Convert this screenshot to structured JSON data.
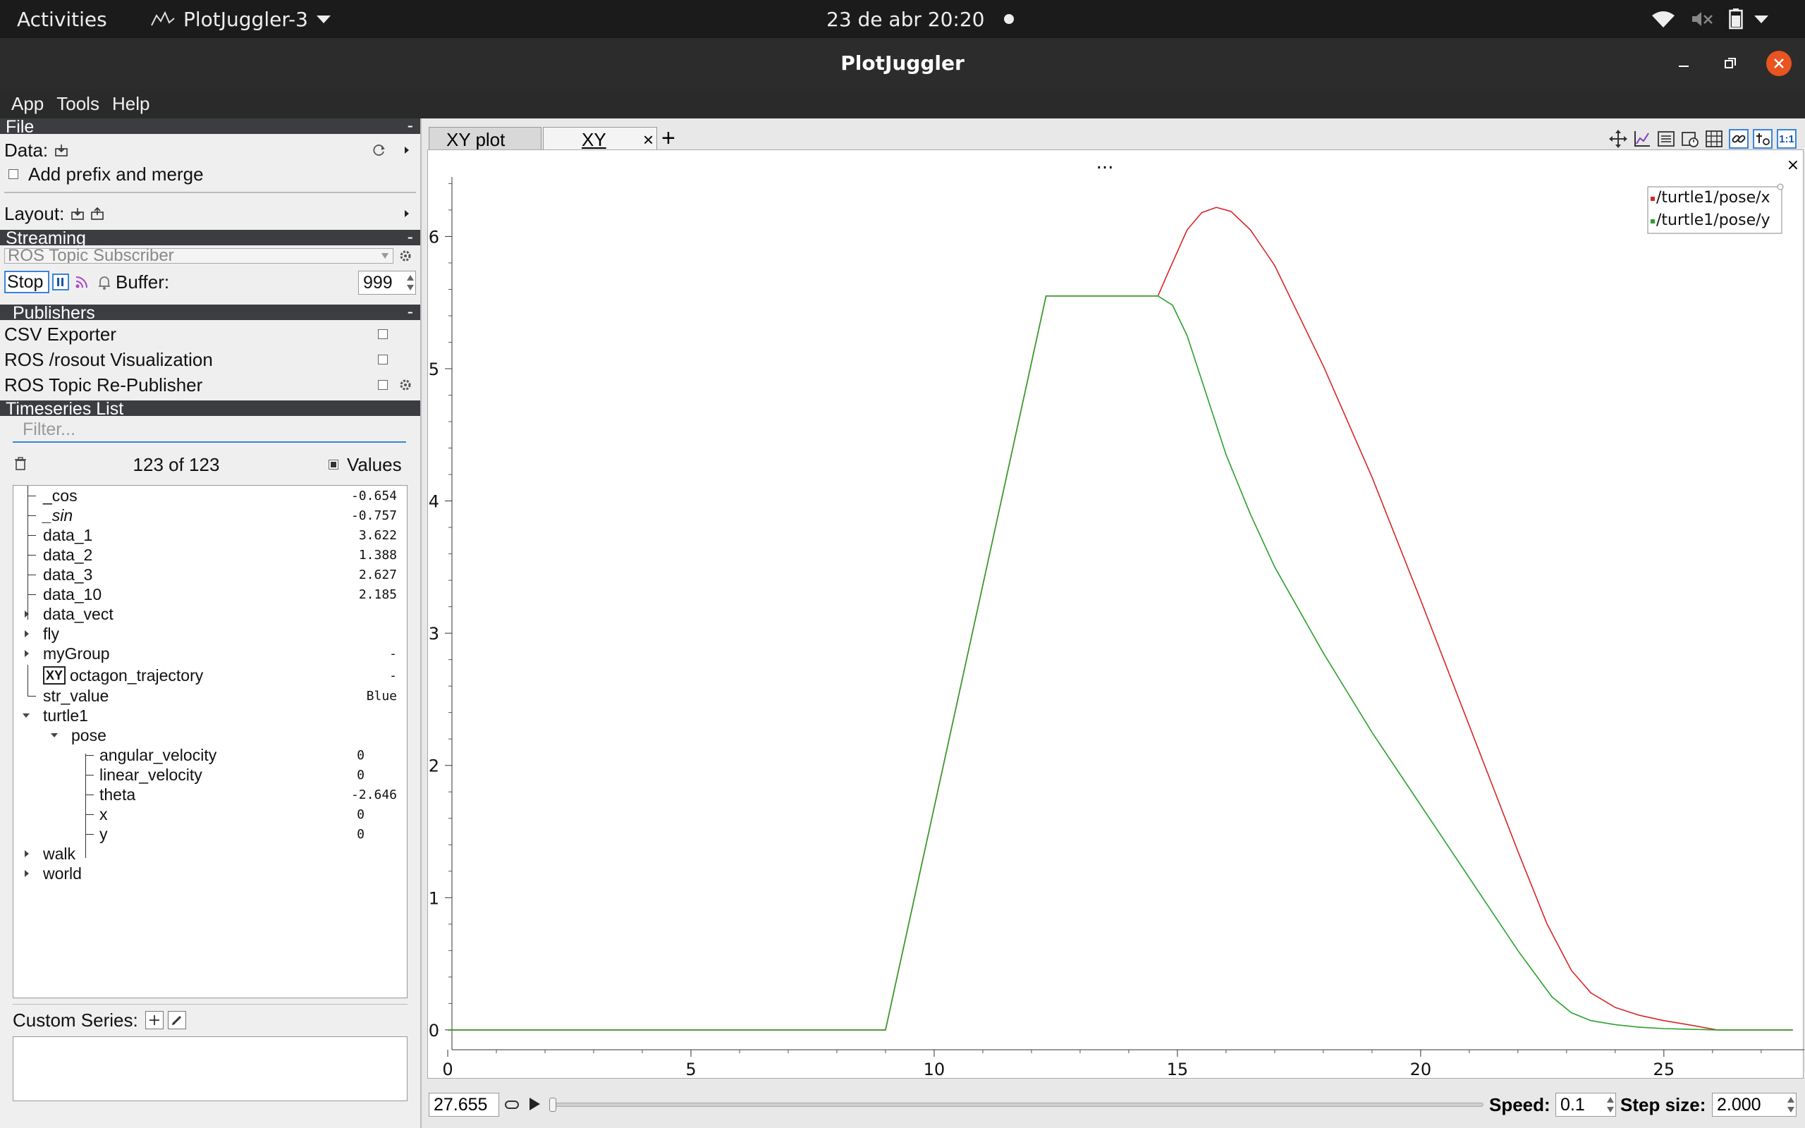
{
  "topbar": {
    "activities": "Activities",
    "app_name": "PlotJuggler-3",
    "clock": "23 de abr  20:20",
    "icons": [
      "wifi-icon",
      "volume-muted-icon",
      "battery-icon"
    ]
  },
  "window": {
    "title": "PlotJuggler",
    "close_color": "#e95420"
  },
  "menu": {
    "app": "App",
    "tools": "Tools",
    "help": "Help"
  },
  "file_section": {
    "header": "File",
    "data_label": "Data:",
    "prefix_label": "Add prefix and merge",
    "layout_label": "Layout:"
  },
  "streaming": {
    "header": "Streaming",
    "source": "ROS Topic Subscriber",
    "stop_label": "Stop",
    "buffer_label": "Buffer:",
    "buffer_value": "999"
  },
  "publishers": {
    "header": "Publishers",
    "items": [
      {
        "label": "CSV Exporter"
      },
      {
        "label": "ROS /rosout Visualization"
      },
      {
        "label": "ROS Topic Re-Publisher"
      }
    ]
  },
  "timeseries": {
    "header": "Timeseries List",
    "filter_placeholder": "Filter...",
    "count": "123 of 123",
    "values_label": "Values",
    "tree": [
      {
        "label": "_cos",
        "value": "-0.654"
      },
      {
        "label": "_sin",
        "value": "-0.757"
      },
      {
        "label": "data_1",
        "value": "3.622"
      },
      {
        "label": "data_2",
        "value": "1.388"
      },
      {
        "label": "data_3",
        "value": "2.627"
      },
      {
        "label": "data_10",
        "value": "2.185"
      },
      {
        "label": "data_vect",
        "value": ""
      },
      {
        "label": "fly",
        "value": ""
      },
      {
        "label": "myGroup",
        "value": "-"
      },
      {
        "label": "octagon_trajectory",
        "value": "-",
        "badge": "XY"
      },
      {
        "label": "str_value",
        "value": "Blue"
      },
      {
        "label": "turtle1",
        "value": ""
      },
      {
        "label": "pose",
        "value": ""
      },
      {
        "label": "angular_velocity",
        "value": "0"
      },
      {
        "label": "linear_velocity",
        "value": "0"
      },
      {
        "label": "theta",
        "value": "-2.646"
      },
      {
        "label": "x",
        "value": "0"
      },
      {
        "label": "y",
        "value": "0"
      },
      {
        "label": "walk",
        "value": ""
      },
      {
        "label": "world",
        "value": ""
      }
    ],
    "custom_series_label": "Custom Series:"
  },
  "tabs": {
    "tab1": "XY plot",
    "tab2": "XY",
    "close": "×",
    "add": "+"
  },
  "plot": {
    "menu_dots": "...",
    "close": "×"
  },
  "chart_data": {
    "type": "line",
    "xlim": [
      0,
      27.655
    ],
    "ylim": [
      -0.15,
      6.45
    ],
    "xticks": [
      0,
      5,
      10,
      15,
      20,
      25
    ],
    "yticks": [
      0,
      1,
      2,
      3,
      4,
      5,
      6
    ],
    "grid": false,
    "legend": "top-right",
    "series": [
      {
        "name": "/turtle1/pose/x",
        "color": "#d62728",
        "x": [
          0,
          9.0,
          12.3,
          14.6,
          14.8,
          15.2,
          15.5,
          15.8,
          16.1,
          16.5,
          17,
          18,
          19,
          20,
          21,
          22,
          22.6,
          23.1,
          23.5,
          24,
          24.5,
          25,
          25.5,
          26.1,
          27.65
        ],
        "y": [
          0,
          0,
          5.55,
          5.55,
          5.72,
          6.05,
          6.18,
          6.22,
          6.19,
          6.05,
          5.78,
          5.02,
          4.18,
          3.25,
          2.3,
          1.35,
          0.8,
          0.45,
          0.28,
          0.17,
          0.11,
          0.07,
          0.04,
          0,
          0
        ]
      },
      {
        "name": "/turtle1/pose/y",
        "color": "#2ca02c",
        "x": [
          0,
          9.0,
          12.3,
          14.6,
          14.9,
          15.2,
          15.6,
          16,
          16.5,
          17,
          18,
          19,
          20,
          21,
          22,
          22.7,
          23.1,
          23.5,
          24,
          24.5,
          25,
          25.5,
          26.1,
          27.65
        ],
        "y": [
          0,
          0,
          5.55,
          5.55,
          5.48,
          5.25,
          4.8,
          4.35,
          3.9,
          3.5,
          2.85,
          2.25,
          1.7,
          1.15,
          0.6,
          0.25,
          0.13,
          0.07,
          0.04,
          0.02,
          0.01,
          0.005,
          0,
          0
        ]
      }
    ]
  },
  "bottom": {
    "time": "27.655",
    "speed_label": "Speed:",
    "speed_value": "0.1",
    "step_label": "Step size:",
    "step_value": "2.000"
  }
}
